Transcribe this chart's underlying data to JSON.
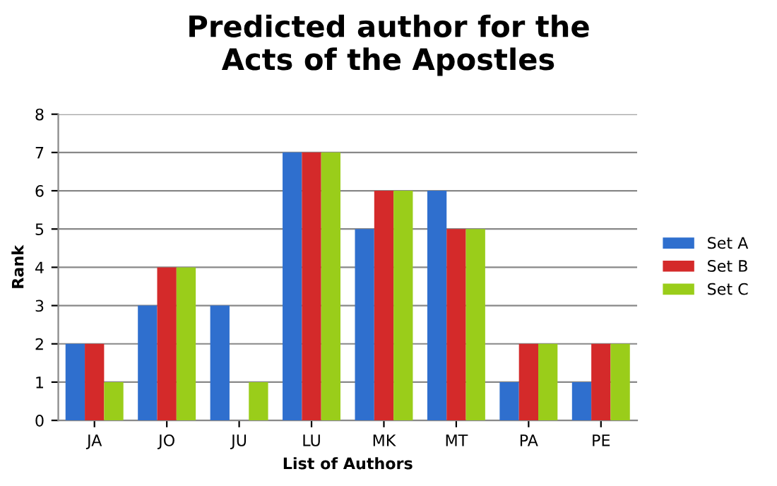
{
  "chart_data": {
    "type": "bar",
    "title": "Predicted author for the\nActs of the Apostles",
    "xlabel": "List of Authors",
    "ylabel": "Rank",
    "categories": [
      "JA",
      "JO",
      "JU",
      "LU",
      "MK",
      "MT",
      "PA",
      "PE"
    ],
    "series": [
      {
        "name": "Set A",
        "color": "#2f6fce",
        "values": [
          2,
          3,
          3,
          7,
          5,
          6,
          1,
          1
        ]
      },
      {
        "name": "Set B",
        "color": "#d42a2a",
        "values": [
          2,
          4,
          0,
          7,
          6,
          5,
          2,
          2
        ]
      },
      {
        "name": "Set C",
        "color": "#9acd1a",
        "values": [
          1,
          4,
          1,
          7,
          6,
          5,
          2,
          2
        ]
      }
    ],
    "ylim": [
      0,
      8
    ],
    "yticks": [
      0,
      1,
      2,
      3,
      4,
      5,
      6,
      7,
      8
    ],
    "grid": "y",
    "legend": "right"
  }
}
